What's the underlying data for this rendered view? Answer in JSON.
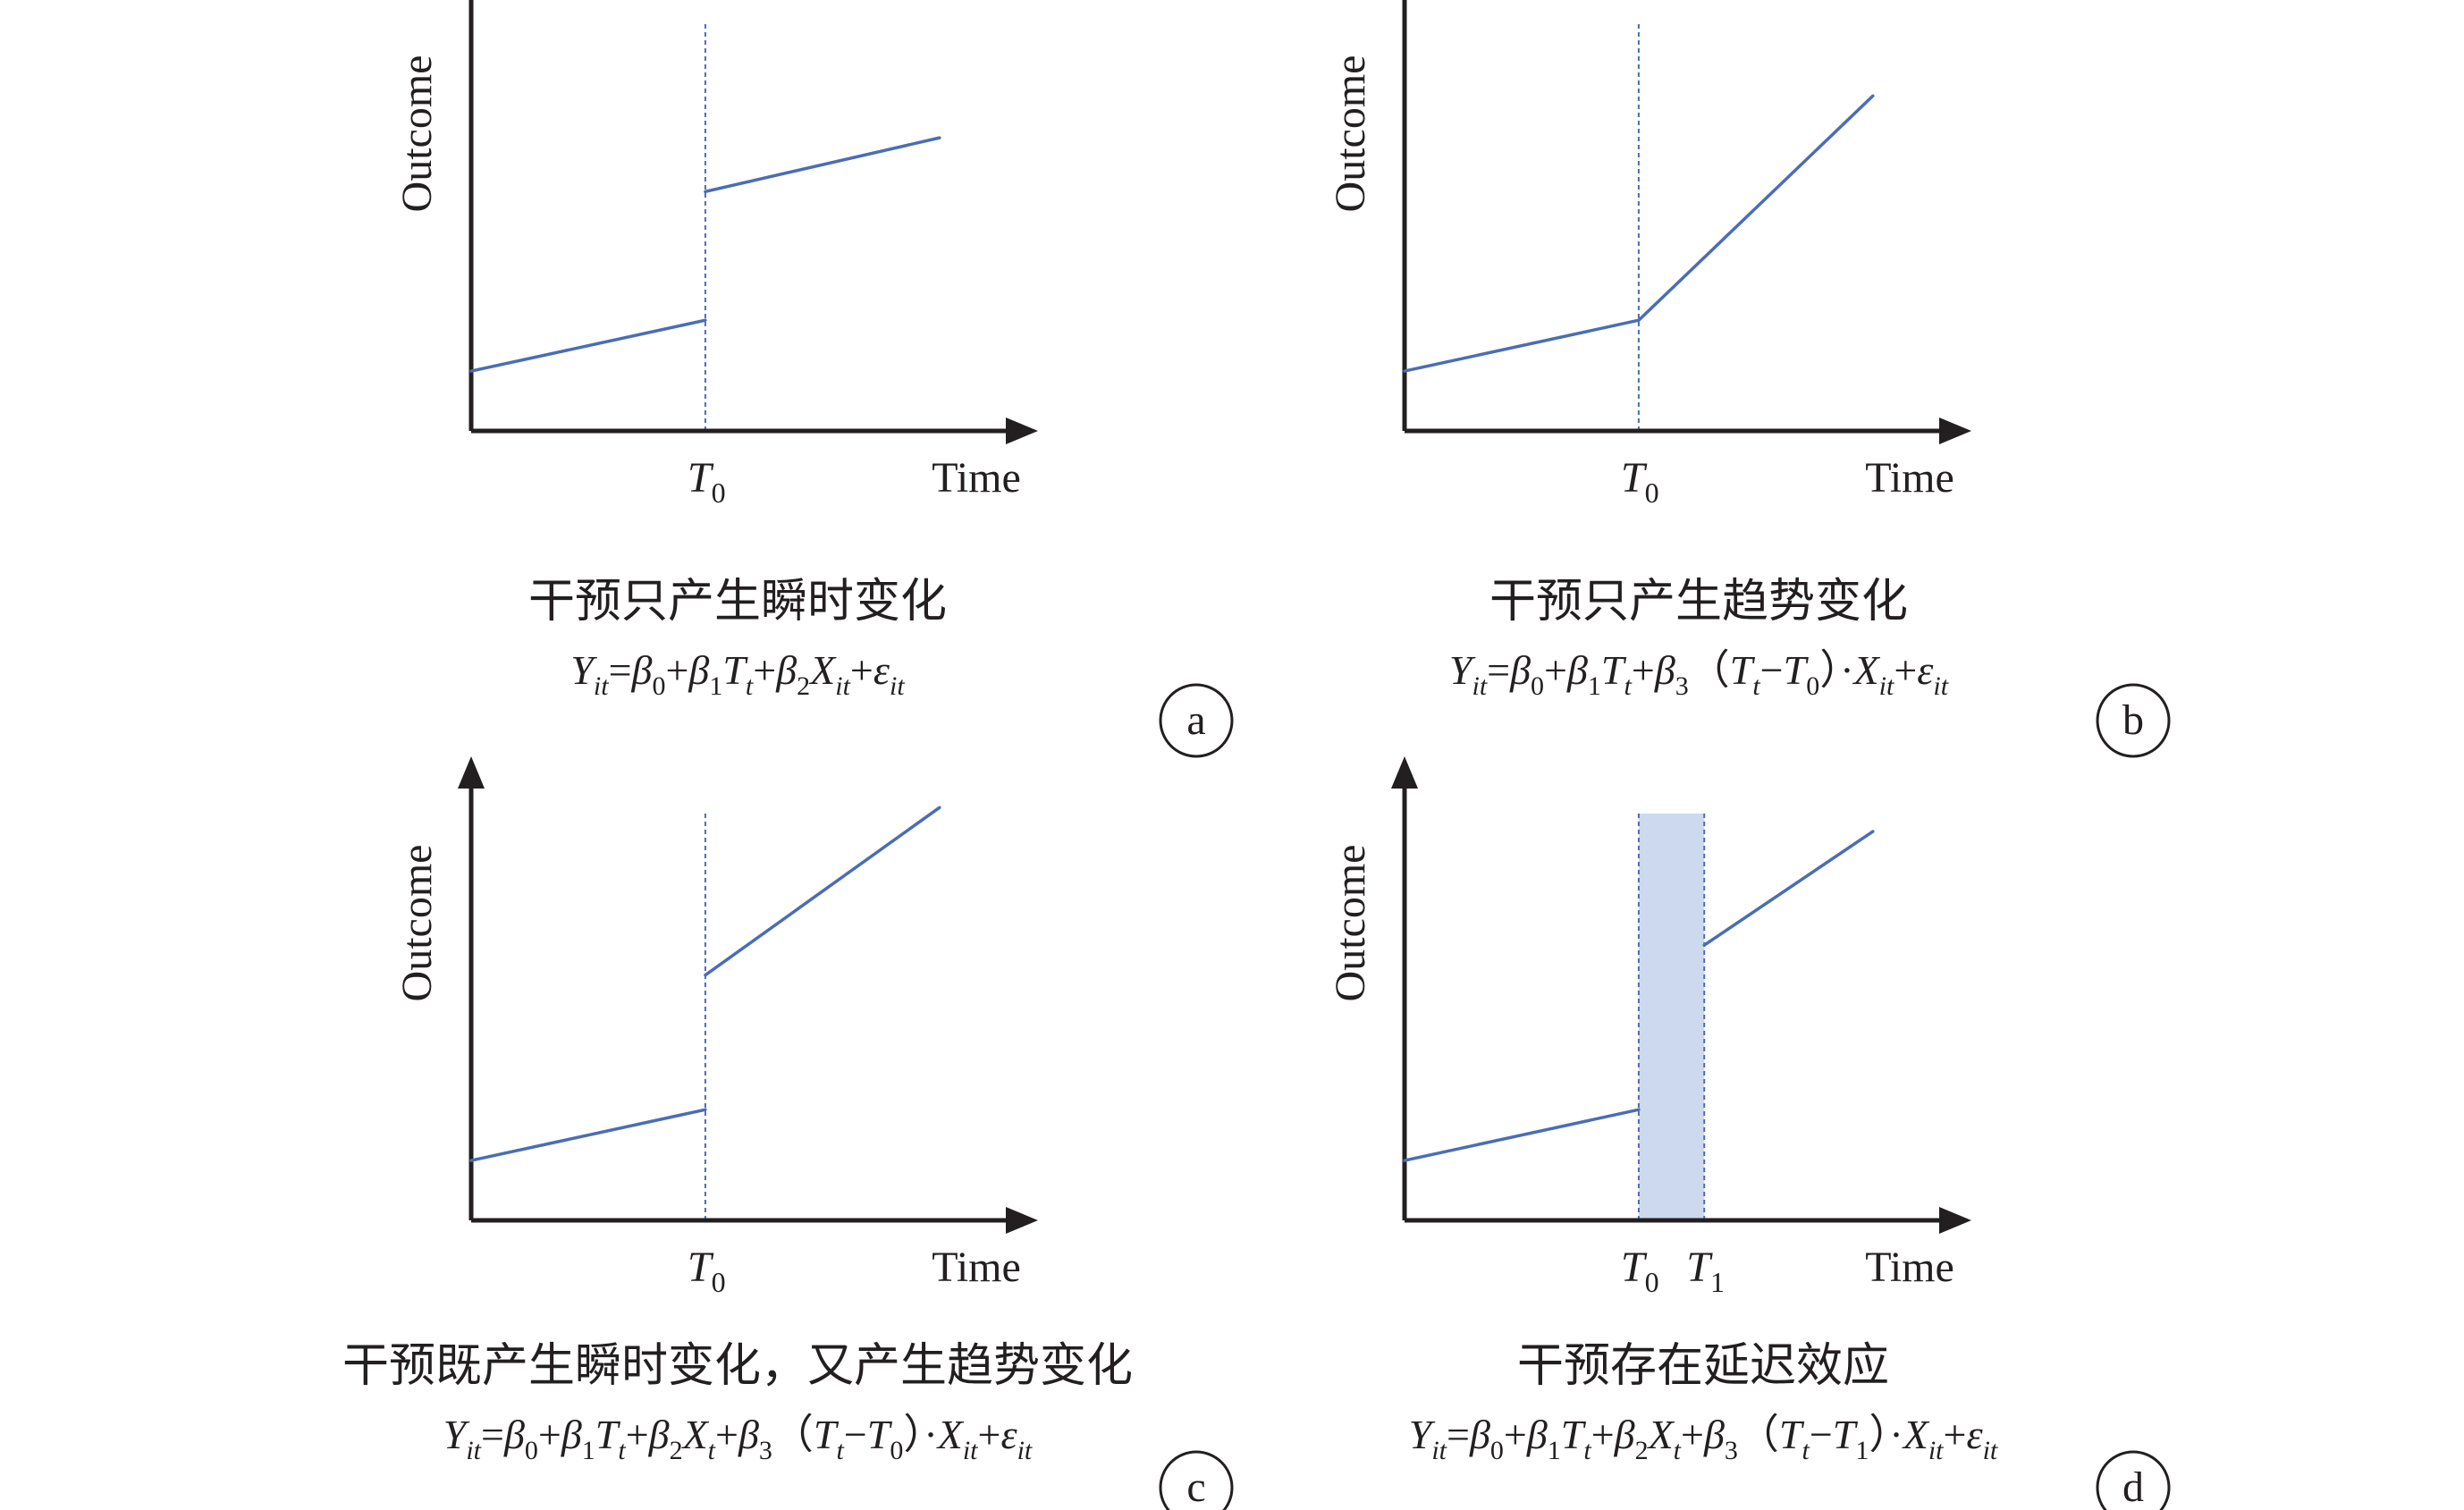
{
  "colors": {
    "axis": "#231f20",
    "trend_line": "#4a6db5",
    "delay_band": "#cdd9ef",
    "delay_band_stroke": "#4a6db5"
  },
  "panels": [
    {
      "id": "a",
      "badge": "a",
      "ylabel": "Outcome",
      "xlabel": "Time",
      "ticks": [
        {
          "main": "T",
          "sub": "0"
        }
      ],
      "caption": "干预只产生瞬时变化",
      "formula": [
        {
          "t": "Y"
        },
        {
          "t": "it",
          "sub": true
        },
        {
          "t": "=",
          "up": true
        },
        {
          "t": "β"
        },
        {
          "t": "0",
          "sub": true,
          "up": true
        },
        {
          "t": "+",
          "up": true
        },
        {
          "t": "β"
        },
        {
          "t": "1",
          "sub": true,
          "up": true
        },
        {
          "t": "T"
        },
        {
          "t": "t",
          "sub": true
        },
        {
          "t": "+",
          "up": true
        },
        {
          "t": "β"
        },
        {
          "t": "2",
          "sub": true,
          "up": true
        },
        {
          "t": "X"
        },
        {
          "t": "it",
          "sub": true
        },
        {
          "t": "+",
          "up": true
        },
        {
          "t": "ε"
        },
        {
          "t": "it",
          "sub": true
        }
      ],
      "chart_data": {
        "type": "line",
        "series": [
          {
            "x": [
              0,
              1
            ],
            "y": [
              1,
              1.85
            ]
          },
          {
            "x": [
              1,
              2
            ],
            "y": [
              4.0,
              4.9
            ]
          }
        ],
        "intervention_x": [
          1
        ],
        "xlim": [
          0,
          2.1
        ],
        "ylim": [
          0,
          6.8
        ]
      }
    },
    {
      "id": "b",
      "badge": "b",
      "ylabel": "Outcome",
      "xlabel": "Time",
      "ticks": [
        {
          "main": "T",
          "sub": "0"
        }
      ],
      "caption": "干预只产生趋势变化",
      "formula": [
        {
          "t": "Y"
        },
        {
          "t": "it",
          "sub": true
        },
        {
          "t": "=",
          "up": true
        },
        {
          "t": "β"
        },
        {
          "t": "0",
          "sub": true,
          "up": true
        },
        {
          "t": "+",
          "up": true
        },
        {
          "t": "β"
        },
        {
          "t": "1",
          "sub": true,
          "up": true
        },
        {
          "t": "T"
        },
        {
          "t": "t",
          "sub": true
        },
        {
          "t": "+",
          "up": true
        },
        {
          "t": "β"
        },
        {
          "t": "3",
          "sub": true,
          "up": true
        },
        {
          "t": "（",
          "up": true
        },
        {
          "t": "T"
        },
        {
          "t": "t",
          "sub": true
        },
        {
          "t": "−",
          "up": true
        },
        {
          "t": "T"
        },
        {
          "t": "0",
          "sub": true,
          "up": true
        },
        {
          "t": "）",
          "up": true
        },
        {
          "t": "·",
          "up": true
        },
        {
          "t": "X"
        },
        {
          "t": "it",
          "sub": true
        },
        {
          "t": "+",
          "up": true
        },
        {
          "t": "ε"
        },
        {
          "t": "it",
          "sub": true
        }
      ],
      "chart_data": {
        "type": "line",
        "series": [
          {
            "x": [
              0,
              1
            ],
            "y": [
              1,
              1.85
            ]
          },
          {
            "x": [
              1,
              2
            ],
            "y": [
              1.85,
              5.6
            ]
          }
        ],
        "intervention_x": [
          1
        ],
        "xlim": [
          0,
          2.1
        ],
        "ylim": [
          0,
          6.8
        ]
      }
    },
    {
      "id": "c",
      "badge": "c",
      "ylabel": "Outcome",
      "xlabel": "Time",
      "ticks": [
        {
          "main": "T",
          "sub": "0"
        }
      ],
      "caption": "干预既产生瞬时变化，又产生趋势变化",
      "formula": [
        {
          "t": "Y"
        },
        {
          "t": "it",
          "sub": true
        },
        {
          "t": "=",
          "up": true
        },
        {
          "t": "β"
        },
        {
          "t": "0",
          "sub": true,
          "up": true
        },
        {
          "t": "+",
          "up": true
        },
        {
          "t": "β"
        },
        {
          "t": "1",
          "sub": true,
          "up": true
        },
        {
          "t": "T"
        },
        {
          "t": "t",
          "sub": true
        },
        {
          "t": "+",
          "up": true
        },
        {
          "t": "β"
        },
        {
          "t": "2",
          "sub": true,
          "up": true
        },
        {
          "t": "X"
        },
        {
          "t": "t",
          "sub": true
        },
        {
          "t": "+",
          "up": true
        },
        {
          "t": "β"
        },
        {
          "t": "3",
          "sub": true,
          "up": true
        },
        {
          "t": "（",
          "up": true
        },
        {
          "t": "T"
        },
        {
          "t": "t",
          "sub": true
        },
        {
          "t": "−",
          "up": true
        },
        {
          "t": "T"
        },
        {
          "t": "0",
          "sub": true,
          "up": true
        },
        {
          "t": "）",
          "up": true
        },
        {
          "t": "·",
          "up": true
        },
        {
          "t": "X"
        },
        {
          "t": "it",
          "sub": true
        },
        {
          "t": "+",
          "up": true
        },
        {
          "t": "ε"
        },
        {
          "t": "it",
          "sub": true
        }
      ],
      "chart_data": {
        "type": "line",
        "series": [
          {
            "x": [
              0,
              1
            ],
            "y": [
              1,
              1.85
            ]
          },
          {
            "x": [
              1,
              2
            ],
            "y": [
              4.1,
              6.9
            ]
          }
        ],
        "intervention_x": [
          1
        ],
        "xlim": [
          0,
          2.1
        ],
        "ylim": [
          0,
          6.8
        ]
      }
    },
    {
      "id": "d",
      "badge": "d",
      "ylabel": "Outcome",
      "xlabel": "Time",
      "ticks": [
        {
          "main": "T",
          "sub": "0"
        },
        {
          "main": "T",
          "sub": "1"
        }
      ],
      "caption": "干预存在延迟效应",
      "formula": [
        {
          "t": "Y"
        },
        {
          "t": "it",
          "sub": true
        },
        {
          "t": "=",
          "up": true
        },
        {
          "t": "β"
        },
        {
          "t": "0",
          "sub": true,
          "up": true
        },
        {
          "t": "+",
          "up": true
        },
        {
          "t": "β"
        },
        {
          "t": "1",
          "sub": true,
          "up": true
        },
        {
          "t": "T"
        },
        {
          "t": "t",
          "sub": true
        },
        {
          "t": "+",
          "up": true
        },
        {
          "t": "β"
        },
        {
          "t": "2",
          "sub": true,
          "up": true
        },
        {
          "t": "X"
        },
        {
          "t": "t",
          "sub": true
        },
        {
          "t": "+",
          "up": true
        },
        {
          "t": "β"
        },
        {
          "t": "3",
          "sub": true,
          "up": true
        },
        {
          "t": "（",
          "up": true
        },
        {
          "t": "T"
        },
        {
          "t": "t",
          "sub": true
        },
        {
          "t": "−",
          "up": true
        },
        {
          "t": "T"
        },
        {
          "t": "1",
          "sub": true,
          "up": true
        },
        {
          "t": "）",
          "up": true
        },
        {
          "t": "·",
          "up": true
        },
        {
          "t": "X"
        },
        {
          "t": "it",
          "sub": true
        },
        {
          "t": "+",
          "up": true
        },
        {
          "t": "ε"
        },
        {
          "t": "it",
          "sub": true
        }
      ],
      "chart_data": {
        "type": "line",
        "series": [
          {
            "x": [
              0,
              1
            ],
            "y": [
              1,
              1.85
            ]
          },
          {
            "x": [
              1.28,
              2
            ],
            "y": [
              4.6,
              6.5
            ]
          }
        ],
        "intervention_x": [
          1,
          1.28
        ],
        "delay_band": [
          1,
          1.28
        ],
        "xlim": [
          0,
          2.1
        ],
        "ylim": [
          0,
          6.8
        ]
      }
    }
  ]
}
